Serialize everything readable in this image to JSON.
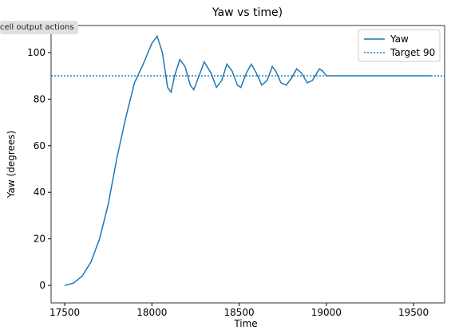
{
  "toolbar_label": "cell output actions",
  "chart_data": {
    "type": "line",
    "title": "Yaw vs time)",
    "x_label": "Time",
    "y_label": "Yaw (degrees)",
    "x": [
      17500,
      17550,
      17600,
      17650,
      17700,
      17750,
      17800,
      17850,
      17900,
      17950,
      18000,
      18030,
      18060,
      18090,
      18110,
      18130,
      18160,
      18190,
      18220,
      18240,
      18270,
      18300,
      18340,
      18370,
      18400,
      18430,
      18460,
      18490,
      18510,
      18540,
      18570,
      18600,
      18630,
      18660,
      18690,
      18710,
      18740,
      18770,
      18800,
      18830,
      18860,
      18890,
      18920,
      18960,
      18980,
      19000,
      19300,
      19600
    ],
    "series": [
      {
        "name": "Yaw",
        "color": "#1f77b4",
        "values": [
          0,
          1,
          4,
          10,
          20,
          35,
          55,
          72,
          87,
          95,
          104,
          107,
          100,
          85,
          83,
          90,
          97,
          94,
          86,
          84,
          90,
          96,
          91,
          85,
          88,
          95,
          92,
          86,
          85,
          91,
          95,
          91,
          86,
          88,
          94,
          92,
          87,
          86,
          89,
          93,
          91,
          87,
          88,
          93,
          92,
          90,
          90,
          90
        ]
      }
    ],
    "target": {
      "name": "Target 90",
      "value": 90,
      "color": "#1f77b4"
    },
    "xlim": [
      17422,
      19678
    ],
    "ylim": [
      -7.5,
      111.6
    ],
    "xticks": [
      17500,
      18000,
      18500,
      19000,
      19500
    ],
    "yticks": [
      0,
      20,
      40,
      60,
      80,
      100
    ],
    "legend": "upper right"
  }
}
